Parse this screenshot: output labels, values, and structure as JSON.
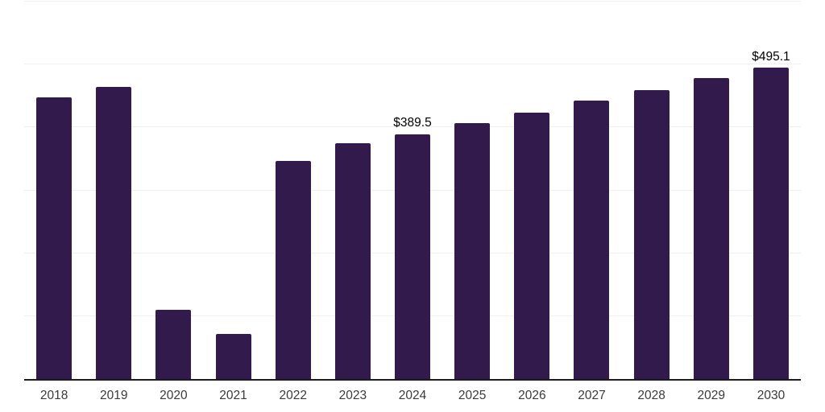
{
  "chart_data": {
    "type": "bar",
    "title": "",
    "xlabel": "",
    "ylabel": "",
    "categories": [
      "2018",
      "2019",
      "2020",
      "2021",
      "2022",
      "2023",
      "2024",
      "2025",
      "2026",
      "2027",
      "2028",
      "2029",
      "2030"
    ],
    "values": [
      447.9,
      464.3,
      110.0,
      71.5,
      346.1,
      374.6,
      389.5,
      406.5,
      423.6,
      442.7,
      458.9,
      478.0,
      495.1
    ],
    "labeled_points": [
      {
        "category": "2024",
        "label": "$389.5"
      },
      {
        "category": "2030",
        "label": "$495.1"
      }
    ],
    "ylim": [
      0,
      600
    ],
    "grid_interval": 100,
    "grid": true,
    "legend": false,
    "colors": {
      "bar": "#321a4d",
      "gridline": "#f0f0f2",
      "axis_line": "#1c1c1c",
      "value_label": "#000000",
      "tick_label": "#3a3a3a",
      "background": "#ffffff"
    }
  }
}
